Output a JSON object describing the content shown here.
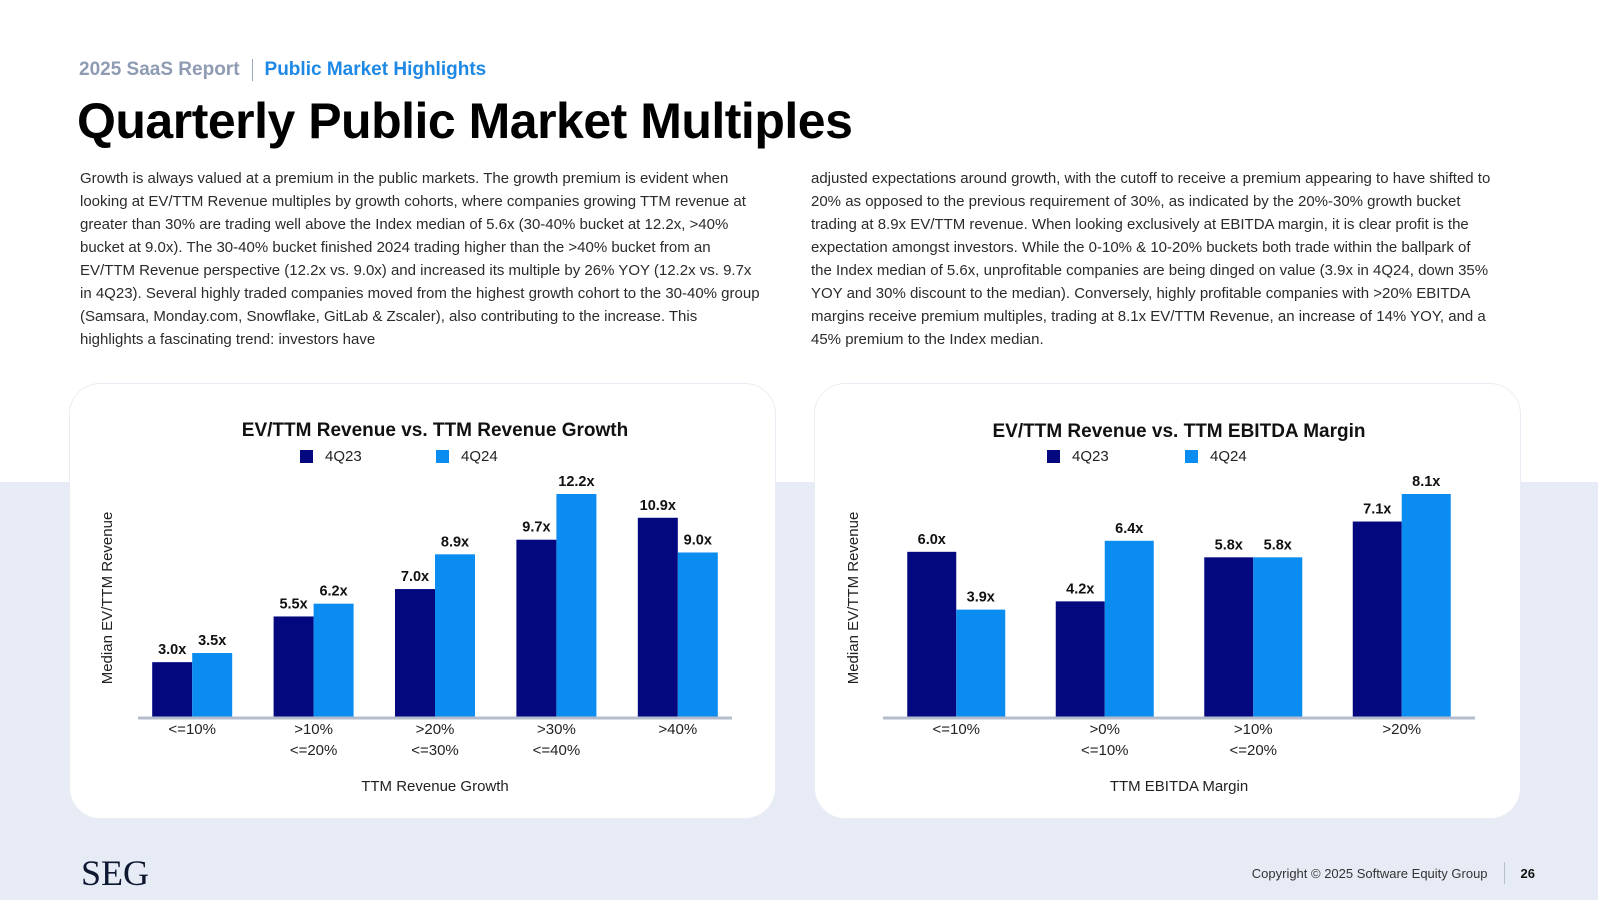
{
  "header": {
    "report": "2025 SaaS Report",
    "section": "Public Market Highlights",
    "title": "Quarterly Public Market Multiples"
  },
  "body": {
    "left": "Growth is always valued at a premium in the public markets. The growth premium is evident when looking at EV/TTM Revenue multiples by growth cohorts, where companies growing TTM revenue at greater than 30% are trading well above the Index median of 5.6x (30-40% bucket at 12.2x, >40% bucket at 9.0x). The 30-40% bucket finished 2024 trading higher than the >40% bucket from an EV/TTM Revenue perspective (12.2x vs. 9.0x) and increased its multiple by 26% YOY (12.2x vs. 9.7x in 4Q23). Several highly traded companies moved from the highest growth cohort to the 30-40% group (Samsara, Monday.com, Snowflake, GitLab & Zscaler), also contributing to the increase. This highlights a fascinating trend: investors have",
    "right": "adjusted expectations around growth, with the cutoff to receive a premium appearing to have shifted to 20% as opposed to the previous requirement of 30%, as indicated by the 20%-30% growth bucket trading at 8.9x EV/TTM revenue. When looking exclusively at EBITDA margin, it is clear profit is the expectation amongst investors. While the 0-10% & 10-20% buckets both trade within the ballpark of the Index median of 5.6x, unprofitable companies are being dinged on value (3.9x in 4Q24, down 35% YOY and 30% discount to the median). Conversely, highly profitable companies with >20% EBITDA margins receive premium multiples, trading at 8.1x EV/TTM Revenue, an increase of 14% YOY, and a 45% premium to the Index median."
  },
  "colors": {
    "series_4Q23": "#03087f",
    "series_4Q24": "#0a8cf0",
    "axis": "#b5bccc"
  },
  "chart_data": [
    {
      "type": "bar",
      "title": "EV/TTM Revenue vs. TTM Revenue Growth",
      "xlabel": "TTM Revenue Growth",
      "ylabel": "Median EV/TTM Revenue",
      "categories": [
        [
          "<=10%"
        ],
        [
          ">10%",
          "<=20%"
        ],
        [
          ">20%",
          "<=30%"
        ],
        [
          ">30%",
          "<=40%"
        ],
        [
          ">40%"
        ]
      ],
      "series": [
        {
          "name": "4Q23",
          "values": [
            3.0,
            5.5,
            7.0,
            9.7,
            10.9
          ],
          "labels": [
            "3.0x",
            "5.5x",
            "7.0x",
            "9.7x",
            "10.9x"
          ]
        },
        {
          "name": "4Q24",
          "values": [
            3.5,
            6.2,
            8.9,
            12.2,
            9.0
          ],
          "labels": [
            "3.5x",
            "6.2x",
            "8.9x",
            "12.2x",
            "9.0x"
          ]
        }
      ],
      "ylim": [
        0,
        12.2
      ]
    },
    {
      "type": "bar",
      "title": "EV/TTM Revenue vs. TTM EBITDA Margin",
      "xlabel": "TTM EBITDA Margin",
      "ylabel": "Median EV/TTM Revenue",
      "categories": [
        [
          "<=10%"
        ],
        [
          ">0%",
          "<=10%"
        ],
        [
          ">10%",
          "<=20%"
        ],
        [
          ">20%"
        ]
      ],
      "series": [
        {
          "name": "4Q23",
          "values": [
            6.0,
            4.2,
            5.8,
            7.1
          ],
          "labels": [
            "6.0x",
            "4.2x",
            "5.8x",
            "7.1x"
          ]
        },
        {
          "name": "4Q24",
          "values": [
            3.9,
            6.4,
            5.8,
            8.1
          ],
          "labels": [
            "3.9x",
            "6.4x",
            "5.8x",
            "8.1x"
          ]
        }
      ],
      "ylim": [
        0,
        8.1
      ]
    }
  ],
  "footer": {
    "logo": "SEG",
    "copyright": "Copyright © 2025 Software Equity Group",
    "page": "26"
  }
}
